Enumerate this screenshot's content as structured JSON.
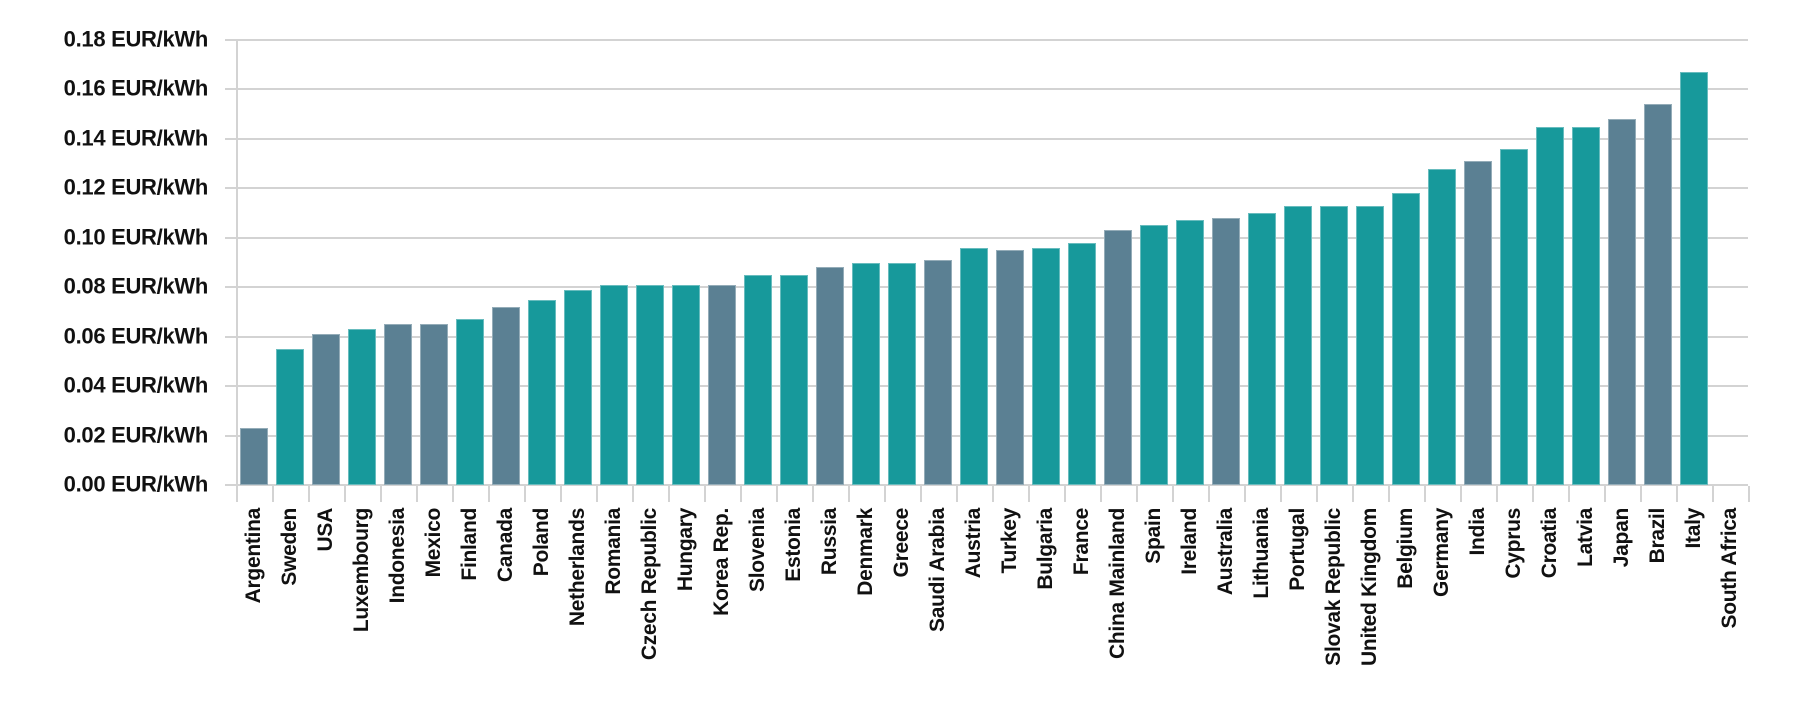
{
  "chart_data": {
    "type": "bar",
    "title": "",
    "unit": "EUR/kWh",
    "grid": true,
    "legend_position": "none",
    "y_axis": {
      "min": 0,
      "max": 0.18,
      "step": 0.02,
      "tick_labels": [
        "0.00 EUR/kWh",
        "0.02 EUR/kWh",
        "0.04 EUR/kWh",
        "0.06 EUR/kWh",
        "0.08 EUR/kWh",
        "0.10 EUR/kWh",
        "0.12 EUR/kWh",
        "0.14 EUR/kWh",
        "0.16 EUR/kWh",
        "0.18 EUR/kWh"
      ]
    },
    "colors": {
      "teal": "#17999B",
      "gray": "#5B8093",
      "gridline": "#d3d3d3",
      "text": "#111111"
    },
    "items": [
      {
        "label": "Argentina",
        "value": 0.023,
        "color": "gray"
      },
      {
        "label": "Sweden",
        "value": 0.055,
        "color": "teal"
      },
      {
        "label": "USA",
        "value": 0.061,
        "color": "gray"
      },
      {
        "label": "Luxembourg",
        "value": 0.063,
        "color": "teal"
      },
      {
        "label": "Indonesia",
        "value": 0.065,
        "color": "gray"
      },
      {
        "label": "Mexico",
        "value": 0.065,
        "color": "gray"
      },
      {
        "label": "Finland",
        "value": 0.067,
        "color": "teal"
      },
      {
        "label": "Canada",
        "value": 0.072,
        "color": "gray"
      },
      {
        "label": "Poland",
        "value": 0.075,
        "color": "teal"
      },
      {
        "label": "Netherlands",
        "value": 0.079,
        "color": "teal"
      },
      {
        "label": "Romania",
        "value": 0.081,
        "color": "teal"
      },
      {
        "label": "Czech Republic",
        "value": 0.081,
        "color": "teal"
      },
      {
        "label": "Hungary",
        "value": 0.081,
        "color": "teal"
      },
      {
        "label": "Korea Rep.",
        "value": 0.081,
        "color": "gray"
      },
      {
        "label": "Slovenia",
        "value": 0.085,
        "color": "teal"
      },
      {
        "label": "Estonia",
        "value": 0.085,
        "color": "teal"
      },
      {
        "label": "Russia",
        "value": 0.088,
        "color": "gray"
      },
      {
        "label": "Denmark",
        "value": 0.09,
        "color": "teal"
      },
      {
        "label": "Greece",
        "value": 0.09,
        "color": "teal"
      },
      {
        "label": "Saudi Arabia",
        "value": 0.091,
        "color": "gray"
      },
      {
        "label": "Austria",
        "value": 0.096,
        "color": "teal"
      },
      {
        "label": "Turkey",
        "value": 0.095,
        "color": "gray"
      },
      {
        "label": "Bulgaria",
        "value": 0.096,
        "color": "teal"
      },
      {
        "label": "France",
        "value": 0.098,
        "color": "teal"
      },
      {
        "label": "China Mainland",
        "value": 0.103,
        "color": "gray"
      },
      {
        "label": "Spain",
        "value": 0.105,
        "color": "teal"
      },
      {
        "label": "Ireland",
        "value": 0.107,
        "color": "teal"
      },
      {
        "label": "Australia",
        "value": 0.108,
        "color": "gray"
      },
      {
        "label": "Lithuania",
        "value": 0.11,
        "color": "teal"
      },
      {
        "label": "Portugal",
        "value": 0.113,
        "color": "teal"
      },
      {
        "label": "Slovak Republic",
        "value": 0.113,
        "color": "teal"
      },
      {
        "label": "United Kingdom",
        "value": 0.113,
        "color": "teal"
      },
      {
        "label": "Belgium",
        "value": 0.118,
        "color": "teal"
      },
      {
        "label": "Germany",
        "value": 0.128,
        "color": "teal"
      },
      {
        "label": "India",
        "value": 0.131,
        "color": "gray"
      },
      {
        "label": "Cyprus",
        "value": 0.136,
        "color": "teal"
      },
      {
        "label": "Croatia",
        "value": 0.145,
        "color": "teal"
      },
      {
        "label": "Latvia",
        "value": 0.145,
        "color": "teal"
      },
      {
        "label": "Japan",
        "value": 0.148,
        "color": "gray"
      },
      {
        "label": "Brazil",
        "value": 0.154,
        "color": "gray"
      },
      {
        "label": "Italy",
        "value": 0.167,
        "color": "teal"
      },
      {
        "label": "South Africa",
        "value": 0.0,
        "color": "teal"
      }
    ]
  }
}
